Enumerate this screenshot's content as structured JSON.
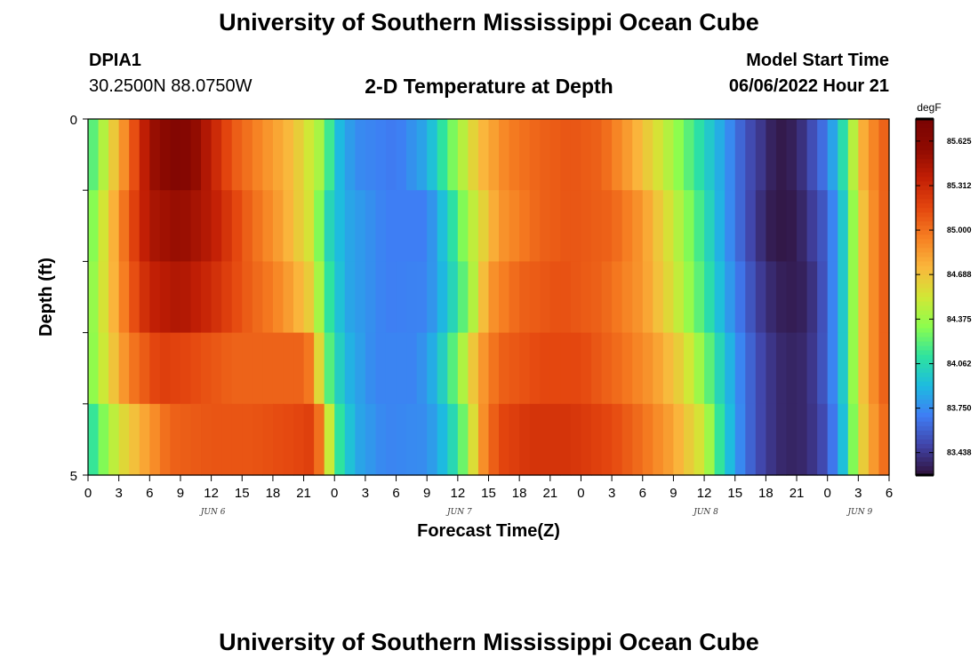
{
  "header": {
    "main_title": "University of Southern Mississippi Ocean Cube",
    "station_id": "DPIA1",
    "station_coords": "30.2500N  88.0750W",
    "plot_title": "2-D Temperature at Depth",
    "model_label": "Model Start Time",
    "model_time": "06/06/2022 Hour 21"
  },
  "footer": {
    "title": "University of Southern Mississippi Ocean Cube"
  },
  "chart_data": {
    "type": "heatmap",
    "title": "2-D Temperature at Depth",
    "xlabel": "Forecast Time(Z)",
    "ylabel": "Depth (ft)",
    "ylim": [
      0,
      5
    ],
    "y_tick_labels": [
      "0",
      "5"
    ],
    "x_hours": [
      0,
      78
    ],
    "x_tick_labels": [
      "0",
      "3",
      "6",
      "9",
      "12",
      "15",
      "18",
      "21",
      "0",
      "3",
      "6",
      "9",
      "12",
      "15",
      "18",
      "21",
      "0",
      "3",
      "6",
      "9",
      "12",
      "15",
      "18",
      "21",
      "0",
      "3",
      "6"
    ],
    "day_labels": [
      {
        "label": "JUN 6",
        "hour": 12
      },
      {
        "label": "JUN 7",
        "hour": 36
      },
      {
        "label": "JUN 8",
        "hour": 60
      },
      {
        "label": "JUN 9",
        "hour": 75
      }
    ],
    "colorbar": {
      "unit": "degF",
      "min": 83.28,
      "max": 85.78,
      "tick_labels": [
        "85.625",
        "85.312",
        "85.000",
        "84.688",
        "84.375",
        "84.062",
        "83.750",
        "83.438"
      ],
      "tick_values": [
        85.625,
        85.312,
        85.0,
        84.688,
        84.375,
        84.062,
        83.75,
        83.438
      ]
    },
    "depth_layers_ft": [
      0.5,
      1.5,
      2.5,
      3.5,
      4.5
    ],
    "temperature_keypoints": [
      {
        "depth_ft": 0.5,
        "points": [
          [
            0,
            84.1
          ],
          [
            4,
            85.0
          ],
          [
            6,
            85.5
          ],
          [
            9,
            85.72
          ],
          [
            11,
            85.5
          ],
          [
            14,
            85.1
          ],
          [
            17,
            84.9
          ],
          [
            20,
            84.7
          ],
          [
            23,
            84.35
          ],
          [
            24,
            83.95
          ],
          [
            26,
            83.75
          ],
          [
            30,
            83.68
          ],
          [
            33,
            83.85
          ],
          [
            35,
            84.2
          ],
          [
            38,
            84.7
          ],
          [
            41,
            84.95
          ],
          [
            44,
            85.05
          ],
          [
            47,
            85.1
          ],
          [
            50,
            85.05
          ],
          [
            53,
            84.8
          ],
          [
            56,
            84.5
          ],
          [
            59,
            84.15
          ],
          [
            62,
            83.8
          ],
          [
            64,
            83.55
          ],
          [
            66,
            83.4
          ],
          [
            67,
            83.3
          ],
          [
            69,
            83.35
          ],
          [
            72,
            83.7
          ],
          [
            74,
            84.2
          ],
          [
            75,
            84.7
          ],
          [
            77,
            85.0
          ],
          [
            78,
            85.1
          ]
        ]
      },
      {
        "depth_ft": 1.5,
        "points": [
          [
            0,
            84.2
          ],
          [
            4,
            85.1
          ],
          [
            6,
            85.45
          ],
          [
            9,
            85.55
          ],
          [
            12,
            85.4
          ],
          [
            15,
            85.1
          ],
          [
            17,
            84.95
          ],
          [
            19,
            84.8
          ],
          [
            22,
            84.5
          ],
          [
            23,
            84.1
          ],
          [
            25,
            83.85
          ],
          [
            29,
            83.7
          ],
          [
            33,
            83.7
          ],
          [
            35,
            84.0
          ],
          [
            37,
            84.4
          ],
          [
            40,
            84.85
          ],
          [
            44,
            85.05
          ],
          [
            47,
            85.1
          ],
          [
            51,
            85.05
          ],
          [
            54,
            84.85
          ],
          [
            57,
            84.5
          ],
          [
            60,
            84.1
          ],
          [
            62,
            83.8
          ],
          [
            64,
            83.55
          ],
          [
            66,
            83.35
          ],
          [
            67,
            83.3
          ],
          [
            69,
            83.32
          ],
          [
            72,
            83.6
          ],
          [
            74,
            84.1
          ],
          [
            75,
            84.6
          ],
          [
            77,
            85.0
          ],
          [
            78,
            85.1
          ]
        ]
      },
      {
        "depth_ft": 2.5,
        "points": [
          [
            0,
            84.25
          ],
          [
            4,
            85.05
          ],
          [
            6,
            85.35
          ],
          [
            9,
            85.45
          ],
          [
            12,
            85.3
          ],
          [
            15,
            85.1
          ],
          [
            18,
            84.95
          ],
          [
            20,
            84.8
          ],
          [
            22,
            84.6
          ],
          [
            23,
            84.2
          ],
          [
            25,
            83.85
          ],
          [
            29,
            83.7
          ],
          [
            33,
            83.72
          ],
          [
            35,
            83.95
          ],
          [
            37,
            84.3
          ],
          [
            39,
            84.85
          ],
          [
            42,
            85.05
          ],
          [
            46,
            85.12
          ],
          [
            50,
            85.05
          ],
          [
            54,
            84.85
          ],
          [
            57,
            84.55
          ],
          [
            60,
            84.15
          ],
          [
            62,
            83.85
          ],
          [
            64,
            83.6
          ],
          [
            66,
            83.4
          ],
          [
            68,
            83.32
          ],
          [
            70,
            83.35
          ],
          [
            72,
            83.6
          ],
          [
            74,
            84.1
          ],
          [
            75,
            84.6
          ],
          [
            77,
            85.0
          ],
          [
            78,
            85.1
          ]
        ]
      },
      {
        "depth_ft": 3.5,
        "points": [
          [
            0,
            84.25
          ],
          [
            4,
            84.95
          ],
          [
            7,
            85.2
          ],
          [
            10,
            85.15
          ],
          [
            14,
            85.05
          ],
          [
            18,
            85.05
          ],
          [
            21,
            85.05
          ],
          [
            22,
            84.9
          ],
          [
            23,
            84.3
          ],
          [
            25,
            83.9
          ],
          [
            28,
            83.72
          ],
          [
            32,
            83.72
          ],
          [
            34,
            83.9
          ],
          [
            36,
            84.3
          ],
          [
            38,
            84.8
          ],
          [
            40,
            85.05
          ],
          [
            44,
            85.15
          ],
          [
            48,
            85.15
          ],
          [
            52,
            85.0
          ],
          [
            55,
            84.85
          ],
          [
            58,
            84.6
          ],
          [
            60,
            84.3
          ],
          [
            62,
            83.95
          ],
          [
            64,
            83.65
          ],
          [
            66,
            83.45
          ],
          [
            68,
            83.35
          ],
          [
            70,
            83.38
          ],
          [
            72,
            83.6
          ],
          [
            74,
            84.1
          ],
          [
            75,
            84.6
          ],
          [
            77,
            85.0
          ],
          [
            78,
            85.1
          ]
        ]
      },
      {
        "depth_ft": 4.5,
        "points": [
          [
            0,
            84.05
          ],
          [
            3,
            84.55
          ],
          [
            6,
            84.85
          ],
          [
            8,
            85.05
          ],
          [
            12,
            85.1
          ],
          [
            16,
            85.1
          ],
          [
            20,
            85.15
          ],
          [
            22,
            85.2
          ],
          [
            23,
            84.8
          ],
          [
            24,
            84.2
          ],
          [
            26,
            83.85
          ],
          [
            29,
            83.72
          ],
          [
            33,
            83.75
          ],
          [
            35,
            83.95
          ],
          [
            37,
            84.35
          ],
          [
            38,
            84.8
          ],
          [
            40,
            85.15
          ],
          [
            43,
            85.25
          ],
          [
            47,
            85.25
          ],
          [
            51,
            85.15
          ],
          [
            54,
            85.0
          ],
          [
            57,
            84.8
          ],
          [
            60,
            84.5
          ],
          [
            62,
            84.0
          ],
          [
            64,
            83.65
          ],
          [
            66,
            83.45
          ],
          [
            68,
            83.35
          ],
          [
            70,
            83.38
          ],
          [
            72,
            83.55
          ],
          [
            74,
            84.05
          ],
          [
            75,
            84.55
          ],
          [
            77,
            84.95
          ],
          [
            78,
            85.05
          ]
        ]
      }
    ],
    "colors": {
      "ramp": [
        "#30123b",
        "#4144a8",
        "#3f7df4",
        "#1dbbe0",
        "#2ee39f",
        "#8cfd4e",
        "#d2e735",
        "#fab73c",
        "#f67f22",
        "#e4460f",
        "#c21f05",
        "#8e0a01",
        "#7a0403"
      ]
    }
  }
}
